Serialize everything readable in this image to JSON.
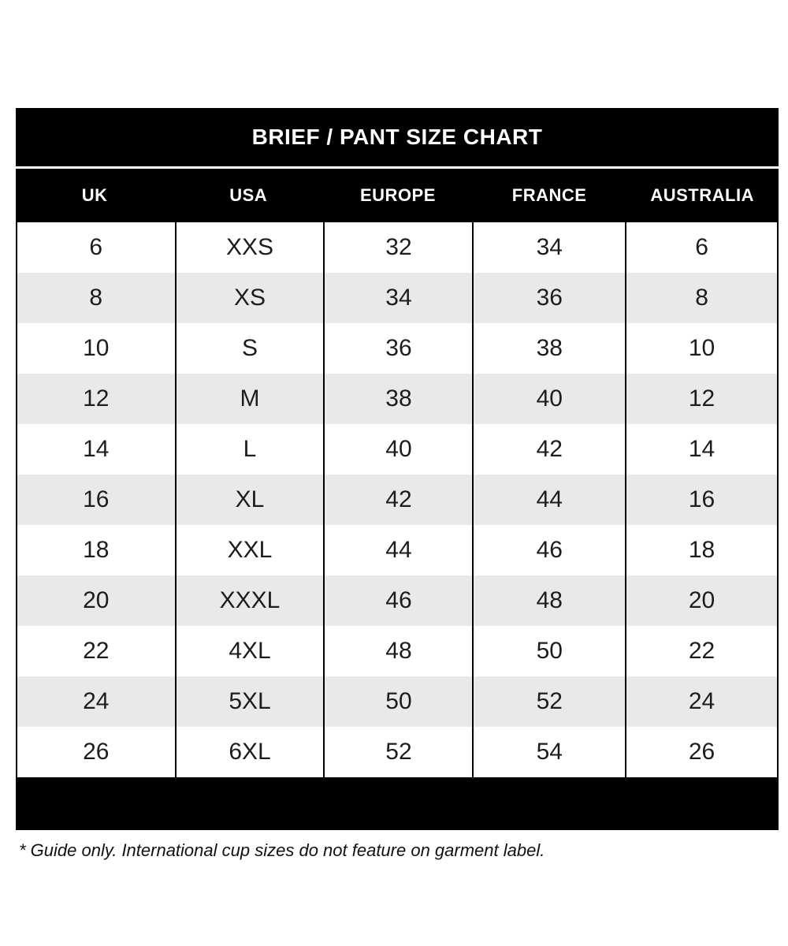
{
  "chart_data": {
    "type": "table",
    "title": "BRIEF / PANT SIZE CHART",
    "columns": [
      "UK",
      "USA",
      "EUROPE",
      "FRANCE",
      "AUSTRALIA"
    ],
    "rows": [
      [
        "6",
        "XXS",
        "32",
        "34",
        "6"
      ],
      [
        "8",
        "XS",
        "34",
        "36",
        "8"
      ],
      [
        "10",
        "S",
        "36",
        "38",
        "10"
      ],
      [
        "12",
        "M",
        "38",
        "40",
        "12"
      ],
      [
        "14",
        "L",
        "40",
        "42",
        "14"
      ],
      [
        "16",
        "XL",
        "42",
        "44",
        "16"
      ],
      [
        "18",
        "XXL",
        "44",
        "46",
        "18"
      ],
      [
        "20",
        "XXXL",
        "46",
        "48",
        "20"
      ],
      [
        "22",
        "4XL",
        "48",
        "50",
        "22"
      ],
      [
        "24",
        "5XL",
        "50",
        "52",
        "24"
      ],
      [
        "26",
        "6XL",
        "52",
        "54",
        "26"
      ]
    ],
    "footnote": "* Guide only. International cup sizes do not feature on garment label.",
    "layout_hints": {
      "alternating_rows": true,
      "grid": "vertical-lines-only"
    }
  },
  "colors": {
    "band_background": "#000000",
    "band_text": "#ffffff",
    "row_background": "#ffffff",
    "row_alt_background": "#e9e9e9",
    "body_text": "#1d1d1d",
    "grid_line": "#000000"
  }
}
